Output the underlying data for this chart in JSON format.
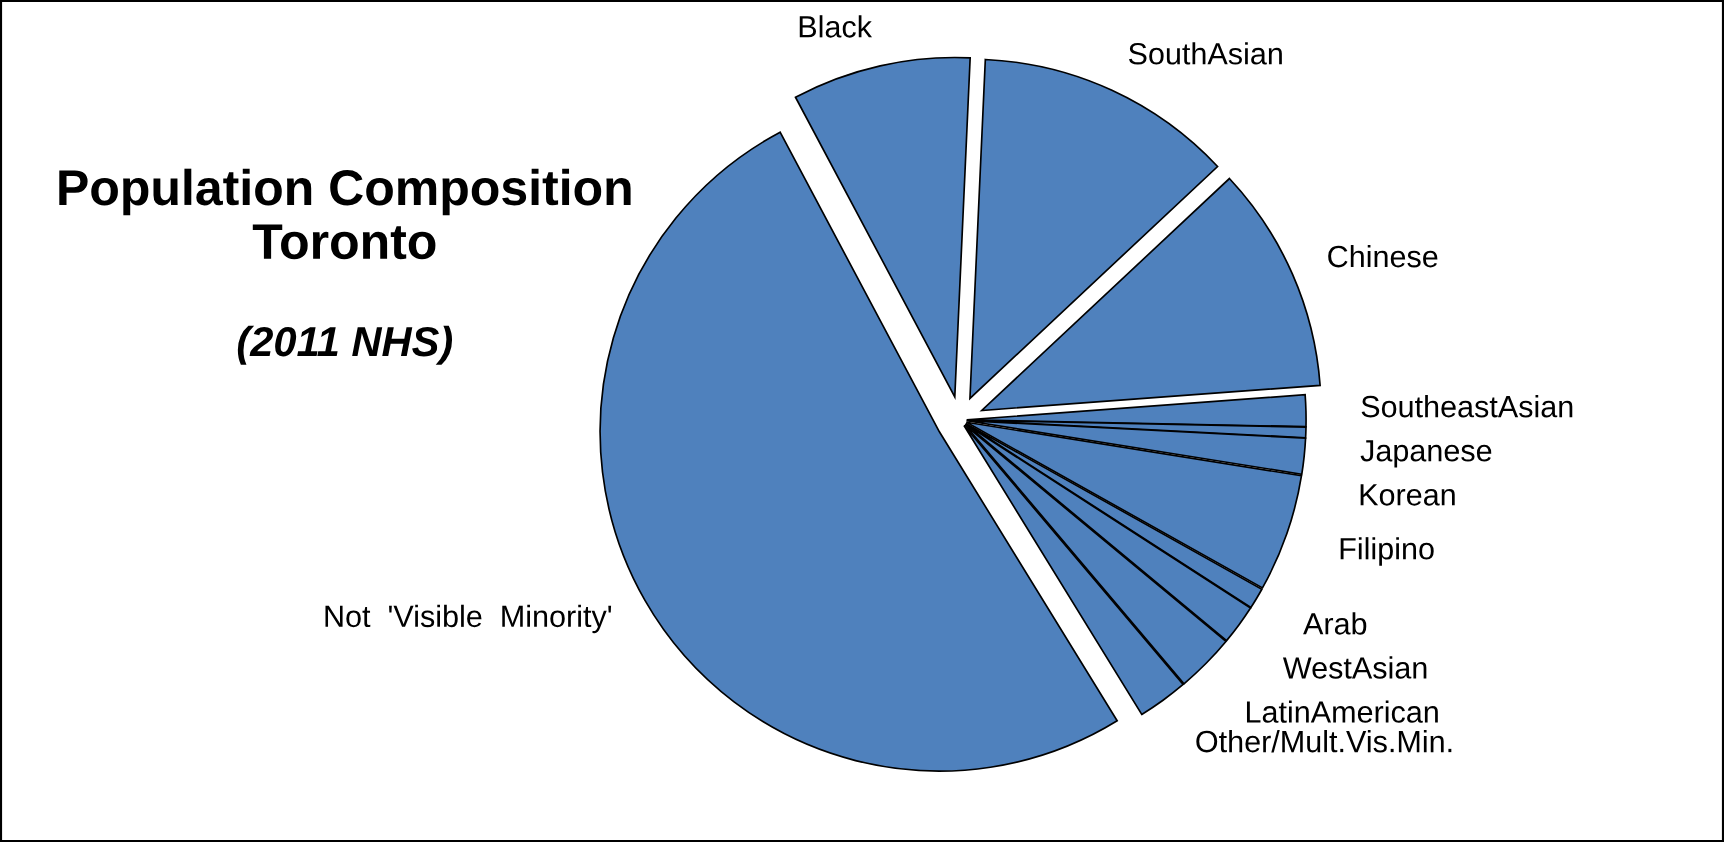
{
  "chart_data": {
    "type": "pie",
    "title": "Population Composition Toronto",
    "subtitle": "(2011 NHS)",
    "categories": [
      "Black",
      "SouthAsian",
      "Chinese",
      "SoutheastAsian",
      "Japanese",
      "Korean",
      "Filipino",
      "Arab",
      "WestAsian",
      "LatinAmerican",
      "Other/Mult.Vis.Min.",
      "Not  'Visible  Minority'"
    ],
    "values": [
      8.5,
      12.3,
      10.8,
      1.5,
      0.5,
      1.7,
      5.6,
      1.0,
      1.9,
      2.8,
      2.4,
      51.0
    ],
    "colors": [
      "#4f81bd",
      "#4f81bd",
      "#4f81bd",
      "#4f81bd",
      "#4f81bd",
      "#4f81bd",
      "#4f81bd",
      "#4f81bd",
      "#4f81bd",
      "#4f81bd",
      "#4f81bd",
      "#4f81bd"
    ],
    "legend": false
  }
}
